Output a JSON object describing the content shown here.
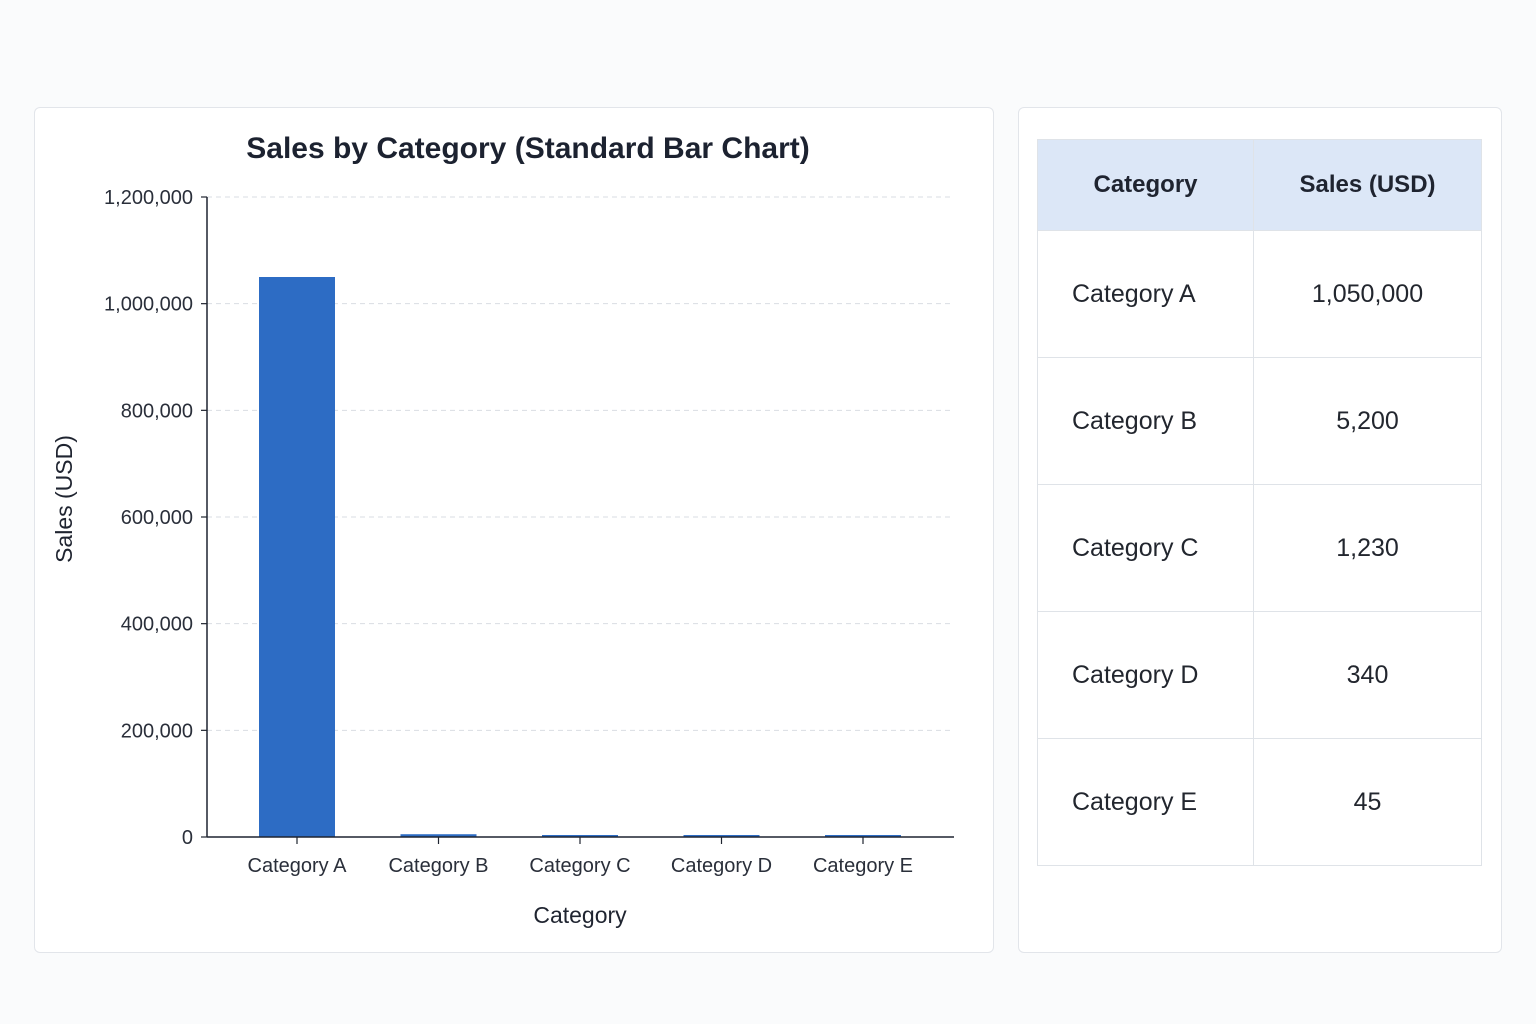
{
  "colors": {
    "bar": "#2d6cc4",
    "table_header_bg": "#dce7f7",
    "grid": "#d9dde3",
    "axis": "#1f2430"
  },
  "chart_data": {
    "type": "bar",
    "title": "Sales by Category (Standard Bar Chart)",
    "xlabel": "Category",
    "ylabel": "Sales (USD)",
    "categories": [
      "Category A",
      "Category B",
      "Category C",
      "Category D",
      "Category E"
    ],
    "values": [
      1050000,
      5200,
      1230,
      340,
      45
    ],
    "ylim": [
      0,
      1200000
    ],
    "yticks": [
      0,
      200000,
      400000,
      600000,
      800000,
      1000000,
      1200000
    ],
    "ytick_labels": [
      "0",
      "200,000",
      "400,000",
      "600,000",
      "800,000",
      "1,000,000",
      "1,200,000"
    ],
    "grid": "horizontal dashed",
    "legend": "none"
  },
  "table": {
    "headers": [
      "Category",
      "Sales (USD)"
    ],
    "rows": [
      {
        "category": "Category A",
        "sales": "1,050,000"
      },
      {
        "category": "Category B",
        "sales": "5,200"
      },
      {
        "category": "Category C",
        "sales": "1,230"
      },
      {
        "category": "Category D",
        "sales": "340"
      },
      {
        "category": "Category E",
        "sales": "45"
      }
    ]
  }
}
